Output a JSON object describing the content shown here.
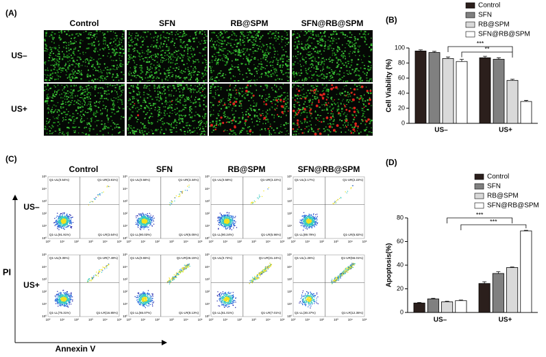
{
  "panel_a": {
    "label": "(A)",
    "columns": [
      "Control",
      "SFN",
      "RB@SPM",
      "SFN@RB@SPM"
    ],
    "rows": [
      "US–",
      "US+"
    ]
  },
  "panel_c": {
    "label": "(C)",
    "columns": [
      "Control",
      "SFN",
      "RB@SPM",
      "SFN@RB@SPM"
    ],
    "rows": [
      "US–",
      "US+"
    ],
    "y_axis_label": "PI",
    "x_axis_label": "Annexin V",
    "tick_labels": [
      "10⁰",
      "10¹",
      "10²",
      "10³",
      "10⁴",
      "10⁵"
    ],
    "quadrants": [
      [
        [
          "Q1-UL(0.54%)",
          "Q1-UR(3.81%)",
          "Q1-LL(91.91%)",
          "Q1-LR(3.64%)"
        ],
        [
          "Q1-UL(0.58%)",
          "Q1-UR(3.34%)",
          "Q1-LL(90.03%)",
          "Q1-LR(6.05%)"
        ],
        [
          "Q1-UL(0.58%)",
          "Q1-UR(3.22%)",
          "Q1-LL(90.24%)",
          "Q1-LR(5.96%)"
        ],
        [
          "Q1-UL(2.17%)",
          "Q1-UR(2.22%)",
          "Q1-LL(89.79%)",
          "Q1-LR(6.82%)"
        ]
      ],
      [
        [
          "Q1-UL(0.35%)",
          "Q1-UR(7.49%)",
          "Q1-LL(75.31%)",
          "Q1-LR(16.85%)"
        ],
        [
          "Q1-UL(0.65%)",
          "Q1-UR(26.15%)",
          "Q1-LL(65.07%)",
          "Q1-LR(8.13%)"
        ],
        [
          "Q1-UL(0.74%)",
          "Q1-UR(31.24%)",
          "Q1-LL(61.01%)",
          "Q1-LR(7.01%)"
        ],
        [
          "Q1-UL(1.26%)",
          "Q1-UR(56.01%)",
          "Q1-LL(30.37%)",
          "Q1-LR(12.35%)"
        ]
      ]
    ]
  },
  "chart_data": [
    {
      "type": "bar",
      "panel_label": "(B)",
      "y_label": "Cell Viability (%)",
      "categories": [
        "US–",
        "US+"
      ],
      "series": [
        {
          "name": "Control",
          "color": "#2b1f1c",
          "values": [
            96,
            87
          ],
          "errors": [
            1.5,
            2
          ]
        },
        {
          "name": "SFN",
          "color": "#808080",
          "values": [
            94,
            85
          ],
          "errors": [
            1.5,
            2
          ]
        },
        {
          "name": "RB@SPM",
          "color": "#d9d9d9",
          "values": [
            86,
            57
          ],
          "errors": [
            2,
            1.5
          ]
        },
        {
          "name": "SFN@RB@SPM",
          "color": "#ffffff",
          "values": [
            82,
            29
          ],
          "errors": [
            3,
            1.5
          ]
        }
      ],
      "ylim": [
        0,
        100
      ],
      "yticks": [
        0,
        20,
        40,
        60,
        80,
        100
      ],
      "annotations": [
        "***",
        "**"
      ]
    },
    {
      "type": "bar",
      "panel_label": "(D)",
      "y_label": "Apoptosis(%)",
      "categories": [
        "US–",
        "US+"
      ],
      "series": [
        {
          "name": "Control",
          "color": "#2b1f1c",
          "values": [
            8,
            24.5
          ],
          "errors": [
            0.5,
            1.5
          ]
        },
        {
          "name": "SFN",
          "color": "#808080",
          "values": [
            11.5,
            33
          ],
          "errors": [
            0.5,
            1.5
          ]
        },
        {
          "name": "RB@SPM",
          "color": "#d9d9d9",
          "values": [
            9,
            38
          ],
          "errors": [
            0.5,
            0.5
          ]
        },
        {
          "name": "SFN@RB@SPM",
          "color": "#ffffff",
          "values": [
            10,
            69
          ],
          "errors": [
            0.5,
            0.5
          ]
        }
      ],
      "ylim": [
        0,
        80
      ],
      "yticks": [
        0,
        20,
        40,
        60,
        80
      ],
      "annotations": [
        "***",
        "***"
      ]
    }
  ]
}
